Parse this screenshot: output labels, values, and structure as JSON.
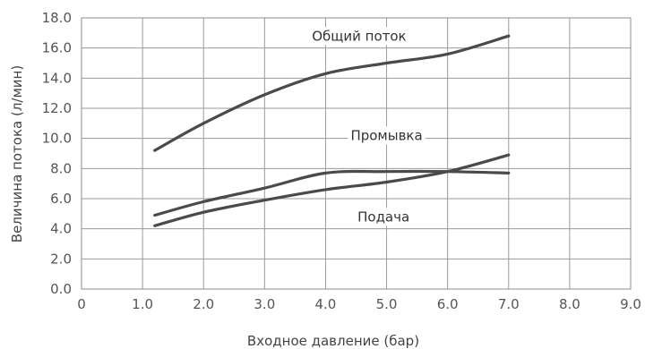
{
  "chart_data": {
    "type": "line",
    "xlabel": "Входное давление (бар)",
    "ylabel": "Величина потока (л/мин)",
    "xlim": [
      0,
      9
    ],
    "ylim": [
      0,
      18
    ],
    "x_ticks": [
      "0",
      "1.0",
      "2.0",
      "3.0",
      "4.0",
      "5.0",
      "6.0",
      "7.0",
      "8.0",
      "9.0"
    ],
    "y_ticks": [
      "0.0",
      "2.0",
      "4.0",
      "6.0",
      "8.0",
      "10.0",
      "12.0",
      "14.0",
      "16.0",
      "18.0"
    ],
    "grid": true,
    "legend": "none",
    "series": [
      {
        "name": "Общий поток",
        "x": [
          1.2,
          2.0,
          3.0,
          4.0,
          5.0,
          6.0,
          7.0
        ],
        "y": [
          9.2,
          11.0,
          12.9,
          14.3,
          15.0,
          15.6,
          16.8
        ]
      },
      {
        "name": "Промывка",
        "x": [
          1.2,
          2.0,
          3.0,
          4.0,
          5.0,
          6.0,
          7.0
        ],
        "y": [
          4.9,
          5.8,
          6.7,
          7.7,
          7.8,
          7.8,
          7.7
        ]
      },
      {
        "name": "Подача",
        "x": [
          1.2,
          2.0,
          3.0,
          4.0,
          5.0,
          6.0,
          7.0
        ],
        "y": [
          4.2,
          5.1,
          5.9,
          6.6,
          7.1,
          7.8,
          8.9
        ]
      }
    ]
  }
}
